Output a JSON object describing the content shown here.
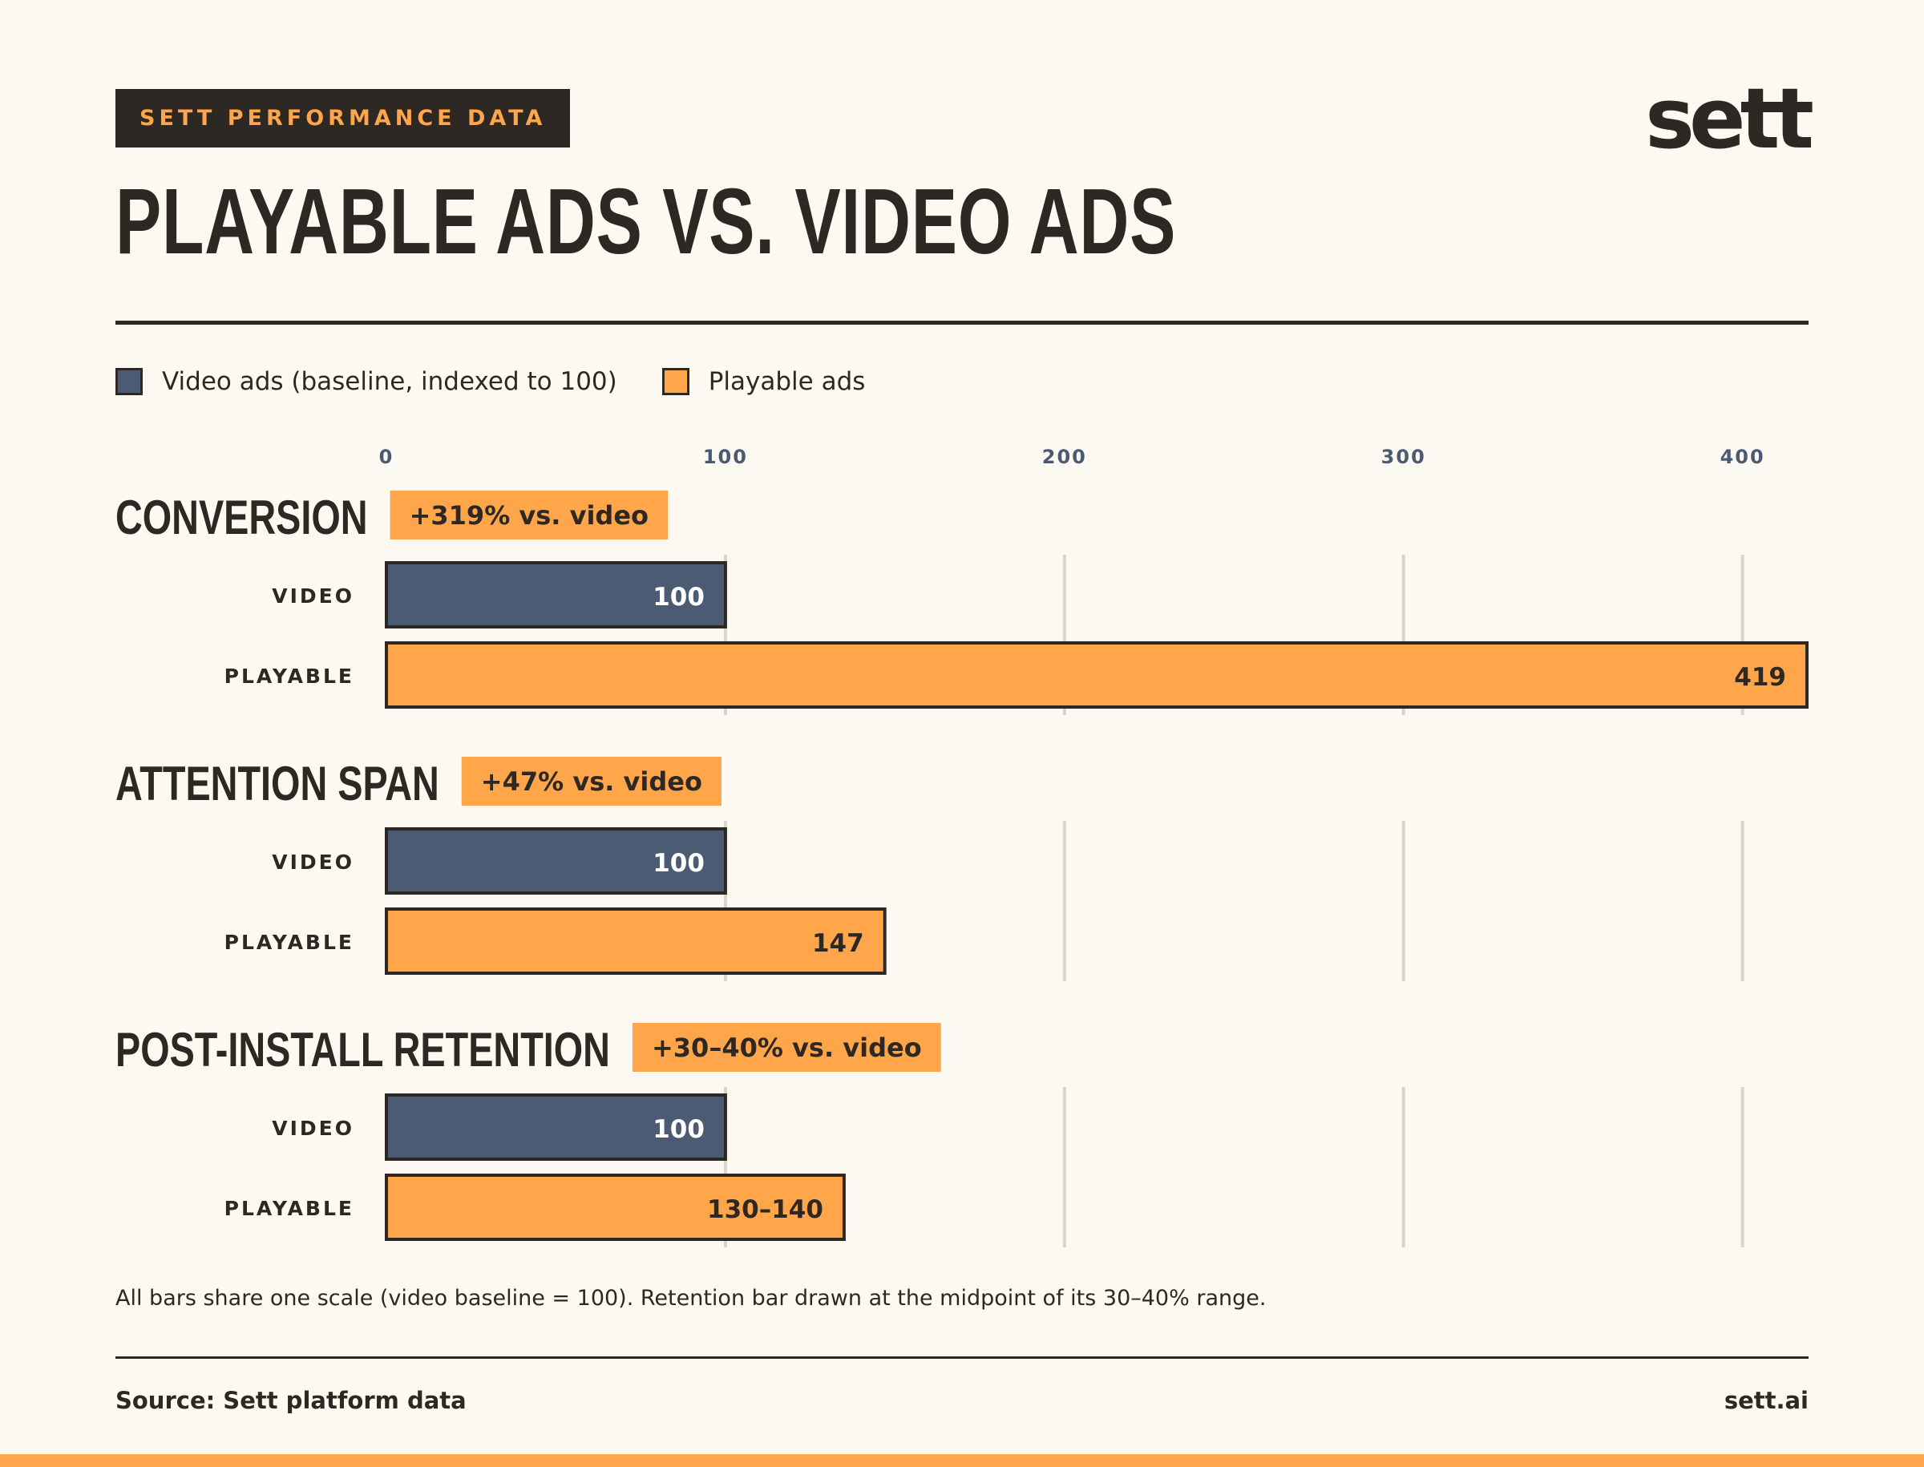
{
  "header": {
    "kicker": "SETT PERFORMANCE DATA",
    "logo": "sett",
    "title": "PLAYABLE ADS VS. VIDEO ADS"
  },
  "legend": [
    {
      "label": "Video ads (baseline, indexed to 100)",
      "color": "#4b5b74"
    },
    {
      "label": "Playable ads",
      "color": "#ffa64a"
    }
  ],
  "footnote": "All bars share one scale (video baseline = 100). Retention bar drawn at the midpoint of its 30–40% range.",
  "footer": {
    "source": "Source: Sett platform data",
    "site": "sett.ai"
  },
  "colors": {
    "video": "#4b5b74",
    "playable": "#ffa64a",
    "ink": "#2d2823",
    "grid": "#d9d5cc",
    "axis_text": "#4b5a72"
  },
  "chart_data": {
    "type": "bar",
    "orientation": "horizontal",
    "xlim": [
      0,
      419
    ],
    "xticks": [
      0,
      100,
      200,
      300,
      400
    ],
    "grid": true,
    "legend_position": "top-left",
    "series": [
      {
        "name": "Video ads (baseline, indexed to 100)",
        "key": "video"
      },
      {
        "name": "Playable ads",
        "key": "playable"
      }
    ],
    "groups": [
      {
        "title": "CONVERSION",
        "delta": "+319% vs. video",
        "rows": [
          {
            "label": "VIDEO",
            "series": "video",
            "value": 100,
            "value_label": "100"
          },
          {
            "label": "PLAYABLE",
            "series": "playable",
            "value": 419,
            "value_label": "419"
          }
        ]
      },
      {
        "title": "ATTENTION SPAN",
        "delta": "+47% vs. video",
        "rows": [
          {
            "label": "VIDEO",
            "series": "video",
            "value": 100,
            "value_label": "100"
          },
          {
            "label": "PLAYABLE",
            "series": "playable",
            "value": 147,
            "value_label": "147"
          }
        ]
      },
      {
        "title": "POST-INSTALL RETENTION",
        "delta": "+30–40% vs. video",
        "rows": [
          {
            "label": "VIDEO",
            "series": "video",
            "value": 100,
            "value_label": "100"
          },
          {
            "label": "PLAYABLE",
            "series": "playable",
            "value": 135,
            "value_label": "130–140"
          }
        ]
      }
    ]
  }
}
